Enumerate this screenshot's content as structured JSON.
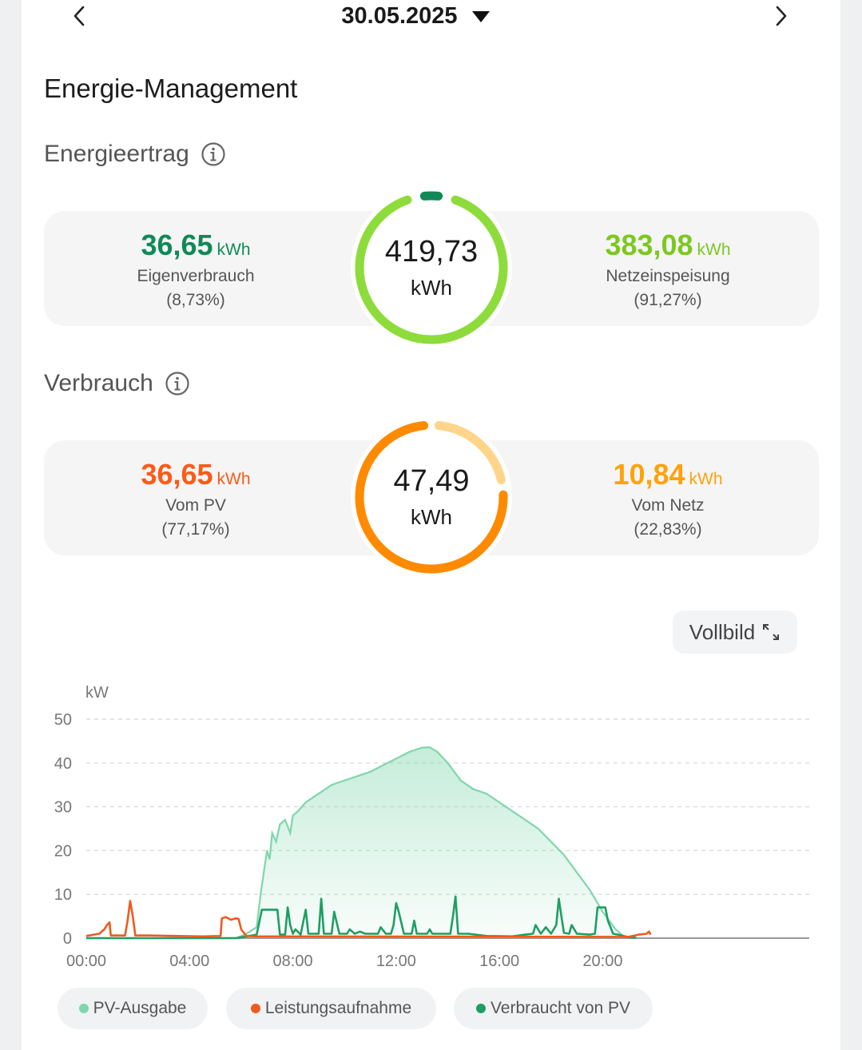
{
  "header": {
    "date": "30.05.2025"
  },
  "page_title": "Energie-Management",
  "yield": {
    "title": "Energieertrag",
    "total_value": "419,73",
    "total_unit": "kWh",
    "self_consumption": {
      "value": "36,65",
      "unit": "kWh",
      "label": "Eigenverbrauch",
      "percent": "(8,73%)",
      "fraction": 0.0873
    },
    "grid_feed": {
      "value": "383,08",
      "unit": "kWh",
      "label": "Netzeinspeisung",
      "percent": "(91,27%)",
      "fraction": 0.9127
    }
  },
  "consumption": {
    "title": "Verbrauch",
    "total_value": "47,49",
    "total_unit": "kWh",
    "from_pv": {
      "value": "36,65",
      "unit": "kWh",
      "label": "Vom PV",
      "percent": "(77,17%)",
      "fraction": 0.7717
    },
    "from_grid": {
      "value": "10,84",
      "unit": "kWh",
      "label": "Vom Netz",
      "percent": "(22,83%)",
      "fraction": 0.2283
    }
  },
  "fullscreen_label": "Vollbild",
  "colors": {
    "dark_green": "#0f8a57",
    "light_green": "#8ddc3c",
    "orange": "#ff8a00",
    "orange_red": "#fb5a17",
    "amber": "#ffa20b",
    "light_orange": "#ffd58a",
    "pv_line": "#7fd6ad",
    "consumption_line": "#f05a1e",
    "used_pv_line": "#1e9e63"
  },
  "chart_data": {
    "type": "line",
    "ylabel": "kW",
    "ylim": [
      0,
      50
    ],
    "yticks": [
      "0",
      "10",
      "20",
      "30",
      "40",
      "50"
    ],
    "xlim": [
      0,
      28
    ],
    "xticks": [
      "00:00",
      "04:00",
      "08:00",
      "12:00",
      "16:00",
      "20:00"
    ],
    "xtick_values": [
      0,
      4,
      8,
      12,
      16,
      20
    ],
    "series": [
      {
        "name": "PV-Ausgabe",
        "points": [
          [
            0,
            0
          ],
          [
            5.8,
            0
          ],
          [
            6.2,
            1
          ],
          [
            6.6,
            2.5
          ],
          [
            6.75,
            10
          ],
          [
            6.9,
            16
          ],
          [
            7.0,
            20
          ],
          [
            7.1,
            18
          ],
          [
            7.2,
            24
          ],
          [
            7.35,
            22
          ],
          [
            7.5,
            26
          ],
          [
            7.7,
            27
          ],
          [
            7.9,
            24
          ],
          [
            8.0,
            28
          ],
          [
            8.2,
            29
          ],
          [
            8.5,
            31
          ],
          [
            9.0,
            33
          ],
          [
            9.5,
            35
          ],
          [
            10,
            36
          ],
          [
            10.5,
            37
          ],
          [
            11,
            38
          ],
          [
            11.5,
            39.5
          ],
          [
            12,
            41
          ],
          [
            12.5,
            42.5
          ],
          [
            13,
            43.5
          ],
          [
            13.3,
            43.6
          ],
          [
            13.6,
            42.5
          ],
          [
            14,
            40
          ],
          [
            14.5,
            36
          ],
          [
            15,
            34
          ],
          [
            15.5,
            33
          ],
          [
            16,
            31
          ],
          [
            16.5,
            29
          ],
          [
            17,
            27
          ],
          [
            17.5,
            25
          ],
          [
            18,
            22
          ],
          [
            18.5,
            19
          ],
          [
            19,
            15
          ],
          [
            19.5,
            11
          ],
          [
            20,
            6
          ],
          [
            20.5,
            2
          ],
          [
            20.8,
            0.5
          ],
          [
            21.3,
            0
          ]
        ]
      },
      {
        "name": "Leistungsaufnahme",
        "points": [
          [
            0,
            0.5
          ],
          [
            0.5,
            1
          ],
          [
            0.7,
            2
          ],
          [
            0.8,
            3
          ],
          [
            0.9,
            3.6
          ],
          [
            0.95,
            0.6
          ],
          [
            1.5,
            0.6
          ],
          [
            1.6,
            4
          ],
          [
            1.7,
            8.5
          ],
          [
            1.8,
            5
          ],
          [
            1.9,
            0.6
          ],
          [
            2.5,
            0.6
          ],
          [
            3.5,
            0.5
          ],
          [
            4.5,
            0.4
          ],
          [
            5.2,
            0.5
          ],
          [
            5.25,
            4.5
          ],
          [
            5.4,
            4.8
          ],
          [
            5.6,
            4.2
          ],
          [
            5.8,
            4.5
          ],
          [
            5.9,
            4.4
          ],
          [
            6.0,
            2
          ],
          [
            6.2,
            0.5
          ],
          [
            6.6,
            0.4
          ],
          [
            21,
            0.3
          ],
          [
            21.4,
            0.8
          ],
          [
            21.7,
            1
          ],
          [
            21.8,
            1.5
          ],
          [
            21.85,
            0.8
          ]
        ]
      },
      {
        "name": "Verbraucht von PV",
        "points": [
          [
            0,
            0
          ],
          [
            5.8,
            0
          ],
          [
            6.3,
            0.5
          ],
          [
            6.6,
            0.8
          ],
          [
            6.8,
            6.5
          ],
          [
            7.4,
            6.5
          ],
          [
            7.5,
            0.8
          ],
          [
            7.7,
            0.8
          ],
          [
            7.8,
            7
          ],
          [
            7.9,
            3
          ],
          [
            8.0,
            1
          ],
          [
            8.1,
            2
          ],
          [
            8.3,
            0.8
          ],
          [
            8.5,
            6.5
          ],
          [
            8.6,
            1
          ],
          [
            9.0,
            1
          ],
          [
            9.1,
            9
          ],
          [
            9.2,
            1
          ],
          [
            9.5,
            1
          ],
          [
            9.6,
            6
          ],
          [
            9.8,
            1
          ],
          [
            10.1,
            1
          ],
          [
            10.2,
            2
          ],
          [
            10.4,
            1
          ],
          [
            10.6,
            1.5
          ],
          [
            10.8,
            1
          ],
          [
            11,
            1
          ],
          [
            11.3,
            1
          ],
          [
            11.4,
            2.5
          ],
          [
            11.6,
            1
          ],
          [
            11.8,
            1
          ],
          [
            11.9,
            3
          ],
          [
            12.0,
            8
          ],
          [
            12.1,
            6
          ],
          [
            12.3,
            1
          ],
          [
            12.6,
            1
          ],
          [
            12.7,
            4
          ],
          [
            12.8,
            1
          ],
          [
            13.2,
            1
          ],
          [
            13.3,
            2
          ],
          [
            13.4,
            1
          ],
          [
            14.1,
            1
          ],
          [
            14.2,
            5
          ],
          [
            14.3,
            9.5
          ],
          [
            14.4,
            1
          ],
          [
            14.8,
            1
          ],
          [
            15.5,
            0.5
          ],
          [
            16.5,
            0.4
          ],
          [
            17,
            0.8
          ],
          [
            17.3,
            1
          ],
          [
            17.4,
            3
          ],
          [
            17.6,
            1
          ],
          [
            17.8,
            2.5
          ],
          [
            18.0,
            1
          ],
          [
            18.2,
            3
          ],
          [
            18.3,
            9
          ],
          [
            18.4,
            5
          ],
          [
            18.5,
            1.2
          ],
          [
            18.7,
            1
          ],
          [
            18.8,
            3
          ],
          [
            19.0,
            1
          ],
          [
            19.5,
            0.8
          ],
          [
            19.7,
            1
          ],
          [
            19.8,
            7
          ],
          [
            20.1,
            7
          ],
          [
            20.2,
            4
          ],
          [
            20.4,
            1
          ],
          [
            20.6,
            0.8
          ],
          [
            21,
            0.2
          ],
          [
            21.3,
            0.1
          ]
        ]
      }
    ],
    "legend": [
      "PV-Ausgabe",
      "Leistungsaufnahme",
      "Verbraucht von PV"
    ]
  }
}
